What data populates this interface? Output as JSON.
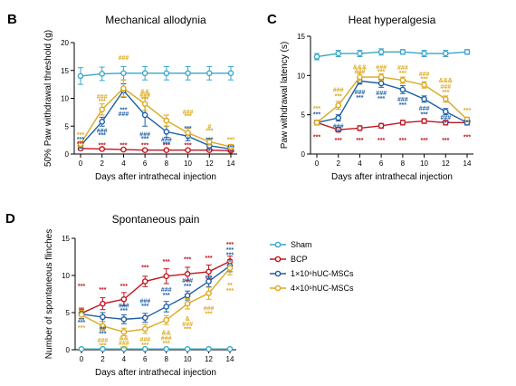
{
  "colors": {
    "sham": "#3aa6c9",
    "bcp": "#c0161f",
    "low": "#1f5fa6",
    "high": "#dca81e"
  },
  "legend": {
    "entries": [
      {
        "key": "sham",
        "label": "Sham"
      },
      {
        "key": "bcp",
        "label": "BCP"
      },
      {
        "key": "low",
        "label": "1×10⁶hUC-MSCs"
      },
      {
        "key": "high",
        "label": "4×10⁶hUC-MSCs"
      }
    ]
  },
  "chart_data": [
    {
      "id": "B",
      "letter": "B",
      "type": "line",
      "title": "Mechanical allodynia",
      "xlabel": "Days after intrathecal injection",
      "ylabel": "50% Paw withdrawal threshold (g)",
      "x": [
        0,
        2,
        4,
        6,
        8,
        10,
        12,
        14
      ],
      "xlim": [
        0,
        14
      ],
      "ylim": [
        0,
        20
      ],
      "yticks": [
        0,
        5,
        10,
        15,
        20
      ],
      "series": [
        {
          "key": "sham",
          "values": [
            14.0,
            14.4,
            14.5,
            14.5,
            14.5,
            14.5,
            14.5,
            14.5
          ],
          "err": [
            1.5,
            1.2,
            1.2,
            1.2,
            1.2,
            1.2,
            1.2,
            1.2
          ]
        },
        {
          "key": "bcp",
          "values": [
            1.0,
            0.9,
            0.8,
            0.7,
            0.7,
            0.7,
            0.7,
            0.6
          ],
          "err": [
            0.3,
            0.2,
            0.2,
            0.2,
            0.2,
            0.2,
            0.2,
            0.2
          ]
        },
        {
          "key": "low",
          "values": [
            1.5,
            5.8,
            11.4,
            7.0,
            4.0,
            3.2,
            1.5,
            0.9
          ],
          "err": [
            0.4,
            0.8,
            1.2,
            2.0,
            1.0,
            0.8,
            0.5,
            0.3
          ]
        },
        {
          "key": "high",
          "values": [
            1.8,
            8.0,
            11.8,
            9.0,
            6.0,
            3.8,
            2.2,
            1.3
          ],
          "err": [
            0.5,
            1.0,
            1.5,
            1.2,
            1.0,
            0.8,
            0.6,
            0.4
          ]
        }
      ],
      "annotations": [
        {
          "x": 0,
          "y": 3.5,
          "key": "high",
          "text": "***"
        },
        {
          "x": 0,
          "y": 2.7,
          "key": "low",
          "text": "***"
        },
        {
          "x": 0,
          "y": 1.9,
          "key": "bcp",
          "text": "***"
        },
        {
          "x": 2,
          "y": 1.6,
          "key": "bcp",
          "text": "***"
        },
        {
          "x": 4,
          "y": 1.6,
          "key": "bcp",
          "text": "***"
        },
        {
          "x": 6,
          "y": 1.6,
          "key": "bcp",
          "text": "***"
        },
        {
          "x": 8,
          "y": 1.6,
          "key": "bcp",
          "text": "***"
        },
        {
          "x": 10,
          "y": 1.6,
          "key": "bcp",
          "text": "***"
        },
        {
          "x": 12,
          "y": 0.6,
          "key": "bcp",
          "text": "***"
        },
        {
          "x": 14,
          "y": 0.4,
          "key": "bcp",
          "text": "***"
        },
        {
          "x": 4,
          "y": 17.3,
          "key": "high",
          "text": "###"
        },
        {
          "x": 2,
          "y": 10.3,
          "key": "high",
          "text": "###"
        },
        {
          "x": 2,
          "y": 9.5,
          "key": "high",
          "text": "***"
        },
        {
          "x": 6,
          "y": 11.2,
          "key": "high",
          "text": "&&"
        },
        {
          "x": 6,
          "y": 10.6,
          "key": "high",
          "text": "###"
        },
        {
          "x": 6,
          "y": 9.8,
          "key": "high",
          "text": "***"
        },
        {
          "x": 10,
          "y": 7.6,
          "key": "high",
          "text": "###"
        },
        {
          "x": 10,
          "y": 6.8,
          "key": "high",
          "text": "***"
        },
        {
          "x": 12,
          "y": 5.0,
          "key": "high",
          "text": "#"
        },
        {
          "x": 12,
          "y": 4.2,
          "key": "high",
          "text": "***"
        },
        {
          "x": 14,
          "y": 2.6,
          "key": "high",
          "text": "***"
        },
        {
          "x": 2,
          "y": 4.2,
          "key": "low",
          "text": "###"
        },
        {
          "x": 2,
          "y": 3.4,
          "key": "low",
          "text": "***"
        },
        {
          "x": 4,
          "y": 8.0,
          "key": "low",
          "text": "***"
        },
        {
          "x": 4,
          "y": 7.2,
          "key": "low",
          "text": "###"
        },
        {
          "x": 6,
          "y": 3.6,
          "key": "low",
          "text": "###"
        },
        {
          "x": 6,
          "y": 2.8,
          "key": "low",
          "text": "***"
        },
        {
          "x": 8,
          "y": 2.6,
          "key": "low",
          "text": "###"
        },
        {
          "x": 8,
          "y": 1.8,
          "key": "low",
          "text": "***"
        },
        {
          "x": 10,
          "y": 4.6,
          "key": "low",
          "text": "***"
        },
        {
          "x": 12,
          "y": 2.6,
          "key": "low",
          "text": "***"
        },
        {
          "x": 14,
          "y": 1.2,
          "key": "low",
          "text": "***"
        }
      ]
    },
    {
      "id": "C",
      "letter": "C",
      "type": "line",
      "title": "Heat hyperalgesia",
      "xlabel": "Days after intrathecal injection",
      "ylabel": "Paw withdrawal latency (s)",
      "x": [
        0,
        2,
        4,
        6,
        8,
        10,
        12,
        14
      ],
      "xlim": [
        0,
        14
      ],
      "ylim": [
        0,
        15
      ],
      "yticks": [
        0,
        5,
        10,
        15
      ],
      "series": [
        {
          "key": "sham",
          "values": [
            12.4,
            12.8,
            12.8,
            13.0,
            13.0,
            12.8,
            12.8,
            13.0
          ],
          "err": [
            0.4,
            0.4,
            0.4,
            0.4,
            0.3,
            0.4,
            0.4,
            0.3
          ]
        },
        {
          "key": "bcp",
          "values": [
            4.0,
            3.1,
            3.3,
            3.6,
            4.0,
            4.2,
            4.0,
            4.0
          ],
          "err": [
            0.3,
            0.3,
            0.3,
            0.3,
            0.3,
            0.3,
            0.3,
            0.3
          ]
        },
        {
          "key": "low",
          "values": [
            4.0,
            4.6,
            9.3,
            9.0,
            8.2,
            7.0,
            5.4,
            4.0
          ],
          "err": [
            0.3,
            0.4,
            0.4,
            0.5,
            0.5,
            0.4,
            0.4,
            0.3
          ]
        },
        {
          "key": "high",
          "values": [
            4.0,
            6.2,
            9.8,
            9.8,
            9.4,
            8.8,
            7.0,
            4.4
          ],
          "err": [
            0.3,
            0.5,
            0.5,
            0.4,
            0.4,
            0.4,
            0.4,
            0.3
          ]
        }
      ],
      "annotations": [
        {
          "x": 0,
          "y": 5.8,
          "key": "high",
          "text": "***"
        },
        {
          "x": 0,
          "y": 5.1,
          "key": "low",
          "text": "***"
        },
        {
          "x": 0,
          "y": 2.2,
          "key": "bcp",
          "text": "***"
        },
        {
          "x": 2,
          "y": 1.8,
          "key": "bcp",
          "text": "***"
        },
        {
          "x": 4,
          "y": 1.8,
          "key": "bcp",
          "text": "***"
        },
        {
          "x": 6,
          "y": 1.8,
          "key": "bcp",
          "text": "***"
        },
        {
          "x": 8,
          "y": 1.8,
          "key": "bcp",
          "text": "***"
        },
        {
          "x": 10,
          "y": 1.8,
          "key": "bcp",
          "text": "***"
        },
        {
          "x": 12,
          "y": 1.8,
          "key": "bcp",
          "text": "***"
        },
        {
          "x": 14,
          "y": 2.2,
          "key": "bcp",
          "text": "***"
        },
        {
          "x": 2,
          "y": 8.2,
          "key": "high",
          "text": "###"
        },
        {
          "x": 2,
          "y": 7.4,
          "key": "high",
          "text": "***"
        },
        {
          "x": 4,
          "y": 11.1,
          "key": "high",
          "text": "&&&"
        },
        {
          "x": 4,
          "y": 10.5,
          "key": "high",
          "text": "###"
        },
        {
          "x": 6,
          "y": 11.1,
          "key": "high",
          "text": "###"
        },
        {
          "x": 6,
          "y": 10.5,
          "key": "high",
          "text": "***"
        },
        {
          "x": 8,
          "y": 11.0,
          "key": "high",
          "text": "###"
        },
        {
          "x": 8,
          "y": 10.3,
          "key": "high",
          "text": "***"
        },
        {
          "x": 10,
          "y": 10.2,
          "key": "high",
          "text": "###"
        },
        {
          "x": 10,
          "y": 9.6,
          "key": "high",
          "text": "***"
        },
        {
          "x": 12,
          "y": 9.4,
          "key": "high",
          "text": "&&&"
        },
        {
          "x": 12,
          "y": 8.6,
          "key": "high",
          "text": "###"
        },
        {
          "x": 12,
          "y": 7.9,
          "key": "high",
          "text": "***"
        },
        {
          "x": 14,
          "y": 5.6,
          "key": "high",
          "text": "***"
        },
        {
          "x": 2,
          "y": 3.6,
          "key": "low",
          "text": "###"
        },
        {
          "x": 2,
          "y": 2.9,
          "key": "low",
          "text": "***"
        },
        {
          "x": 4,
          "y": 7.9,
          "key": "low",
          "text": "###"
        },
        {
          "x": 4,
          "y": 7.2,
          "key": "low",
          "text": "***"
        },
        {
          "x": 6,
          "y": 7.8,
          "key": "low",
          "text": "###"
        },
        {
          "x": 6,
          "y": 7.1,
          "key": "low",
          "text": "***"
        },
        {
          "x": 8,
          "y": 7.0,
          "key": "low",
          "text": "###"
        },
        {
          "x": 8,
          "y": 6.3,
          "key": "low",
          "text": "***"
        },
        {
          "x": 10,
          "y": 5.8,
          "key": "low",
          "text": "###"
        },
        {
          "x": 10,
          "y": 5.1,
          "key": "low",
          "text": "***"
        },
        {
          "x": 12,
          "y": 4.7,
          "key": "low",
          "text": "###"
        },
        {
          "x": 12,
          "y": 4.0,
          "key": "low",
          "text": "***"
        },
        {
          "x": 14,
          "y": 4.1,
          "key": "low",
          "text": "***"
        }
      ]
    },
    {
      "id": "D",
      "letter": "D",
      "type": "line",
      "title": "Spontaneous pain",
      "xlabel": "Days after intrathecal injection",
      "ylabel": "Number of spontaneous flinches",
      "x": [
        0,
        2,
        4,
        6,
        8,
        10,
        12,
        14
      ],
      "xlim": [
        0,
        14
      ],
      "ylim": [
        0,
        15
      ],
      "yticks": [
        0,
        5,
        10,
        15
      ],
      "series": [
        {
          "key": "sham",
          "values": [
            0.1,
            0.1,
            0.1,
            0.1,
            0.1,
            0.1,
            0.1,
            0.1
          ],
          "err": [
            0.1,
            0.1,
            0.1,
            0.1,
            0.1,
            0.1,
            0.1,
            0.1
          ]
        },
        {
          "key": "bcp",
          "values": [
            4.9,
            6.2,
            6.8,
            9.2,
            9.9,
            10.2,
            10.5,
            11.9
          ],
          "err": [
            0.7,
            0.8,
            0.9,
            0.7,
            1.0,
            0.9,
            0.9,
            0.7
          ]
        },
        {
          "key": "low",
          "values": [
            4.8,
            4.4,
            4.1,
            4.3,
            5.8,
            7.3,
            9.2,
            11.3
          ],
          "err": [
            0.6,
            0.6,
            0.6,
            0.6,
            0.7,
            0.6,
            0.7,
            0.8
          ]
        },
        {
          "key": "high",
          "values": [
            4.7,
            3.2,
            2.4,
            2.8,
            4.0,
            6.2,
            7.6,
            11.0
          ],
          "err": [
            0.6,
            0.6,
            0.5,
            0.6,
            0.6,
            0.7,
            0.8,
            0.9
          ]
        }
      ],
      "annotations": [
        {
          "x": 0,
          "y": 8.6,
          "key": "bcp",
          "text": "***"
        },
        {
          "x": 0,
          "y": 3.7,
          "key": "low",
          "text": "***"
        },
        {
          "x": 0,
          "y": 3.0,
          "key": "high",
          "text": "***"
        },
        {
          "x": 2,
          "y": 8.1,
          "key": "bcp",
          "text": "***"
        },
        {
          "x": 4,
          "y": 8.6,
          "key": "bcp",
          "text": "***"
        },
        {
          "x": 6,
          "y": 11.1,
          "key": "bcp",
          "text": "***"
        },
        {
          "x": 8,
          "y": 11.9,
          "key": "bcp",
          "text": "***"
        },
        {
          "x": 10,
          "y": 12.2,
          "key": "bcp",
          "text": "***"
        },
        {
          "x": 12,
          "y": 12.4,
          "key": "bcp",
          "text": "***"
        },
        {
          "x": 14,
          "y": 14.2,
          "key": "bcp",
          "text": "***"
        },
        {
          "x": 14,
          "y": 13.5,
          "key": "low",
          "text": "***"
        },
        {
          "x": 14,
          "y": 12.8,
          "key": "low",
          "text": "***"
        },
        {
          "x": 2,
          "y": 2.9,
          "key": "low",
          "text": "##"
        },
        {
          "x": 2,
          "y": 2.2,
          "key": "low",
          "text": "***"
        },
        {
          "x": 4,
          "y": 6.0,
          "key": "low",
          "text": "###"
        },
        {
          "x": 4,
          "y": 5.3,
          "key": "low",
          "text": "***"
        },
        {
          "x": 6,
          "y": 6.6,
          "key": "low",
          "text": "###"
        },
        {
          "x": 6,
          "y": 5.9,
          "key": "low",
          "text": "***"
        },
        {
          "x": 8,
          "y": 8.1,
          "key": "low",
          "text": "###"
        },
        {
          "x": 8,
          "y": 7.4,
          "key": "low",
          "text": "***"
        },
        {
          "x": 10,
          "y": 9.3,
          "key": "low",
          "text": "###"
        },
        {
          "x": 10,
          "y": 8.6,
          "key": "low",
          "text": "***"
        },
        {
          "x": 12,
          "y": 9.7,
          "key": "low",
          "text": "***"
        },
        {
          "x": 2,
          "y": 1.3,
          "key": "high",
          "text": "###"
        },
        {
          "x": 2,
          "y": 0.6,
          "key": "high",
          "text": "***"
        },
        {
          "x": 4,
          "y": 1.6,
          "key": "high",
          "text": "&&"
        },
        {
          "x": 4,
          "y": 0.9,
          "key": "high",
          "text": "###"
        },
        {
          "x": 4,
          "y": 0.2,
          "key": "high",
          "text": "***"
        },
        {
          "x": 6,
          "y": 1.4,
          "key": "high",
          "text": "###"
        },
        {
          "x": 6,
          "y": 0.7,
          "key": "high",
          "text": "***"
        },
        {
          "x": 8,
          "y": 2.3,
          "key": "high",
          "text": "&&"
        },
        {
          "x": 8,
          "y": 1.6,
          "key": "high",
          "text": "###"
        },
        {
          "x": 8,
          "y": 0.9,
          "key": "high",
          "text": "***"
        },
        {
          "x": 10,
          "y": 4.2,
          "key": "high",
          "text": "&"
        },
        {
          "x": 10,
          "y": 3.5,
          "key": "high",
          "text": "###"
        },
        {
          "x": 10,
          "y": 2.8,
          "key": "high",
          "text": "***"
        },
        {
          "x": 12,
          "y": 5.6,
          "key": "high",
          "text": "###"
        },
        {
          "x": 12,
          "y": 4.9,
          "key": "high",
          "text": "***"
        },
        {
          "x": 14,
          "y": 8.7,
          "key": "high",
          "text": "**"
        },
        {
          "x": 14,
          "y": 8.0,
          "key": "high",
          "text": "***"
        }
      ]
    }
  ]
}
